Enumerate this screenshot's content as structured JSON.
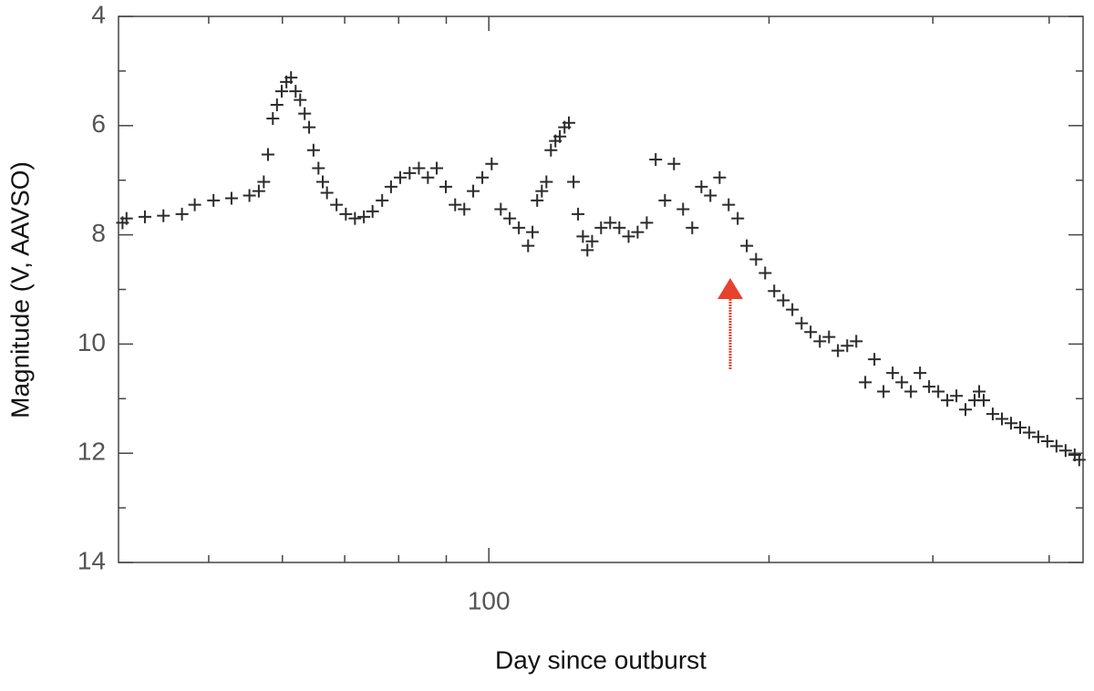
{
  "chart_data": {
    "type": "scatter",
    "x_label": "Day since outburst",
    "y_label": "Magnitude (V, AAVSO)",
    "x_log": true,
    "y_inverted": true,
    "marker": "+",
    "color": "#2b2b2b",
    "xlim": [
      40,
      435
    ],
    "xticks": [
      100
    ],
    "xminorticks": [
      50,
      60,
      70,
      80,
      90,
      200,
      300,
      400
    ],
    "ylim": [
      4,
      14
    ],
    "yticks": [
      4,
      6,
      8,
      10,
      12,
      14
    ],
    "yminorticks": [
      5,
      7,
      9,
      11,
      13
    ],
    "series": [
      {
        "name": "V",
        "color": "#2b2b2b",
        "x": [
          40.4,
          40.8,
          42.7,
          44.7,
          46.8,
          48.3,
          50.6,
          52.9,
          55.3,
          56.6,
          57.3,
          57.9,
          58.6,
          59.2,
          59.9,
          60.6,
          61.3,
          62.0,
          62.7,
          63.4,
          64.1,
          64.8,
          65.6,
          66.3,
          67.0,
          68.6,
          70.2,
          71.8,
          73.4,
          75.0,
          76.8,
          78.5,
          80.3,
          82.2,
          84.1,
          86.0,
          87.9,
          89.9,
          92.0,
          94.1,
          96.2,
          98.4,
          100.7,
          103.0,
          105.3,
          107.7,
          110.2,
          111.4,
          112.7,
          114.0,
          115.3,
          116.6,
          117.9,
          119.2,
          120.6,
          121.9,
          123.3,
          124.7,
          126.2,
          127.6,
          129.1,
          132.0,
          135.0,
          138.1,
          141.3,
          144.5,
          147.8,
          151.1,
          154.6,
          158.1,
          161.7,
          165.4,
          169.2,
          173.0,
          177.0,
          181.0,
          185.1,
          189.3,
          193.7,
          198.1,
          202.6,
          207.2,
          211.9,
          216.8,
          221.7,
          226.8,
          232.0,
          237.2,
          242.7,
          248.2,
          253.8,
          259.6,
          265.5,
          271.6,
          277.8,
          284.1,
          290.6,
          297.2,
          304.0,
          310.9,
          318.0,
          325.2,
          332.6,
          336.4,
          340.2,
          347.9,
          355.9,
          364.0,
          372.3,
          380.7,
          389.4,
          398.2,
          407.3,
          416.6,
          426.1,
          430.9
        ],
        "values": [
          7.78,
          7.7,
          7.67,
          7.65,
          7.62,
          7.45,
          7.37,
          7.33,
          7.28,
          7.2,
          7.03,
          6.53,
          5.87,
          5.62,
          5.37,
          5.2,
          5.12,
          5.37,
          5.53,
          5.78,
          6.03,
          6.45,
          6.78,
          7.03,
          7.23,
          7.45,
          7.62,
          7.7,
          7.67,
          7.57,
          7.37,
          7.12,
          6.95,
          6.87,
          6.78,
          6.95,
          6.78,
          7.12,
          7.45,
          7.53,
          7.2,
          6.95,
          6.7,
          7.53,
          7.7,
          7.87,
          8.2,
          7.95,
          7.37,
          7.2,
          7.03,
          6.45,
          6.28,
          6.2,
          6.03,
          5.95,
          7.03,
          7.62,
          8.03,
          8.28,
          8.12,
          7.87,
          7.78,
          7.87,
          8.03,
          7.95,
          7.78,
          6.62,
          7.37,
          6.7,
          7.53,
          7.87,
          7.12,
          7.28,
          6.95,
          7.45,
          7.7,
          8.2,
          8.45,
          8.7,
          9.03,
          9.2,
          9.37,
          9.62,
          9.78,
          9.95,
          9.87,
          10.12,
          10.03,
          9.95,
          10.7,
          10.28,
          10.87,
          10.53,
          10.7,
          10.87,
          10.53,
          10.78,
          10.87,
          11.03,
          10.95,
          11.2,
          11.03,
          10.87,
          11.03,
          11.28,
          11.37,
          11.45,
          11.53,
          11.62,
          11.7,
          11.78,
          11.87,
          11.95,
          12.03,
          12.12
        ]
      }
    ]
  }
}
